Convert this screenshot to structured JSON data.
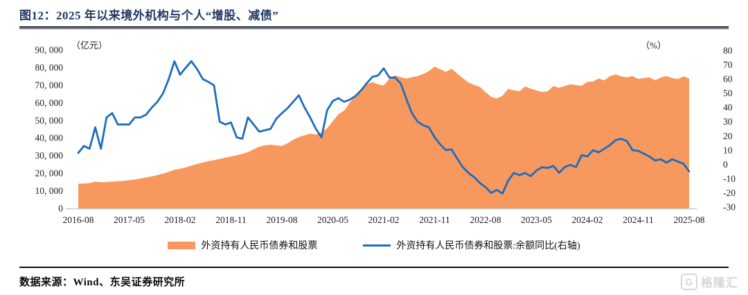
{
  "header": {
    "title": "图12：2025 年以来境外机构与个人“增股、减债”"
  },
  "footer": {
    "source": "数据来源：Wind、东吴证券研究所"
  },
  "watermark": {
    "logo_letter": "G",
    "text": "格隆汇"
  },
  "colors": {
    "area": "#F7995E",
    "line": "#1B6DBE",
    "title_navy": "#1F3864",
    "axis_text": "#1c1c24",
    "axis_line": "#c9c9c9"
  },
  "chart_data": {
    "type": "area",
    "subtype": "area + line, dual axis, monthly series 2016-08 to 2025-08",
    "x_tick_labels": [
      "2016-08",
      "2017-05",
      "2018-02",
      "2018-11",
      "2019-08",
      "2020-05",
      "2021-02",
      "2021-11",
      "2022-08",
      "2023-05",
      "2024-02",
      "2024-11",
      "2025-08"
    ],
    "left_axis": {
      "unit": "（亿元）",
      "min": 0,
      "max": 90000,
      "tick_step": 10000,
      "tick_labels_top_down": [
        "90, 000",
        "80, 000",
        "70, 000",
        "60, 000",
        "50, 000",
        "40, 000",
        "30, 000",
        "20, 000",
        "10, 000",
        "0"
      ]
    },
    "right_axis": {
      "unit": "（%）",
      "min": -30,
      "max": 80,
      "tick_step": 10,
      "tick_labels_top_down": [
        "80",
        "70",
        "60",
        "50",
        "40",
        "30",
        "20",
        "10",
        "0",
        "-10",
        "-20",
        "-30"
      ]
    },
    "grid": "off",
    "legend_position": "bottom-center",
    "x": [
      "2016-08",
      "2016-09",
      "2016-10",
      "2016-11",
      "2016-12",
      "2017-01",
      "2017-02",
      "2017-03",
      "2017-04",
      "2017-05",
      "2017-06",
      "2017-07",
      "2017-08",
      "2017-09",
      "2017-10",
      "2017-11",
      "2017-12",
      "2018-01",
      "2018-02",
      "2018-03",
      "2018-04",
      "2018-05",
      "2018-06",
      "2018-07",
      "2018-08",
      "2018-09",
      "2018-10",
      "2018-11",
      "2018-12",
      "2019-01",
      "2019-02",
      "2019-03",
      "2019-04",
      "2019-05",
      "2019-06",
      "2019-07",
      "2019-08",
      "2019-09",
      "2019-10",
      "2019-11",
      "2019-12",
      "2020-01",
      "2020-02",
      "2020-03",
      "2020-04",
      "2020-05",
      "2020-06",
      "2020-07",
      "2020-08",
      "2020-09",
      "2020-10",
      "2020-11",
      "2020-12",
      "2021-01",
      "2021-02",
      "2021-03",
      "2021-04",
      "2021-05",
      "2021-06",
      "2021-07",
      "2021-08",
      "2021-09",
      "2021-10",
      "2021-11",
      "2021-12",
      "2022-01",
      "2022-02",
      "2022-03",
      "2022-04",
      "2022-05",
      "2022-06",
      "2022-07",
      "2022-08",
      "2022-09",
      "2022-10",
      "2022-11",
      "2022-12",
      "2023-01",
      "2023-02",
      "2023-03",
      "2023-04",
      "2023-05",
      "2023-06",
      "2023-07",
      "2023-08",
      "2023-09",
      "2023-10",
      "2023-11",
      "2023-12",
      "2024-01",
      "2024-02",
      "2024-03",
      "2024-04",
      "2024-05",
      "2024-06",
      "2024-07",
      "2024-08",
      "2024-09",
      "2024-10",
      "2024-11",
      "2024-12",
      "2025-01",
      "2025-02",
      "2025-03",
      "2025-04",
      "2025-05",
      "2025-06",
      "2025-07",
      "2025-08"
    ],
    "series": [
      {
        "name": "外资持有人民币债券和股票",
        "type": "area",
        "axis": "left",
        "color": "#F7995E",
        "values": [
          14000,
          14200,
          14400,
          15200,
          14900,
          15000,
          15200,
          15400,
          15700,
          16000,
          16400,
          17000,
          17600,
          18200,
          19000,
          19800,
          20800,
          22000,
          22500,
          23300,
          24300,
          25200,
          26100,
          26800,
          27400,
          28100,
          28800,
          29500,
          30100,
          31000,
          32000,
          33500,
          35000,
          35800,
          36200,
          35800,
          35500,
          37000,
          39000,
          40500,
          41500,
          42500,
          42000,
          43000,
          45500,
          49500,
          53500,
          55500,
          60000,
          64000,
          67000,
          70400,
          71800,
          70400,
          69800,
          73700,
          75500,
          74500,
          73700,
          74500,
          75200,
          76300,
          78000,
          80500,
          79000,
          77500,
          79300,
          76500,
          74000,
          71500,
          70000,
          69000,
          66000,
          63300,
          62400,
          64000,
          67900,
          67000,
          66500,
          69200,
          68000,
          67000,
          66100,
          66500,
          69500,
          68500,
          69500,
          70500,
          70000,
          69600,
          71800,
          72000,
          73800,
          72700,
          75100,
          76000,
          75000,
          74400,
          75100,
          73500,
          74000,
          74400,
          72700,
          74400,
          75100,
          74000,
          73500,
          75000,
          73800
        ]
      },
      {
        "name": "外资持有人民币债券和股票:余额同比(右轴)",
        "type": "line",
        "axis": "right",
        "color": "#1B6DBE",
        "values": [
          8,
          13,
          11,
          26,
          11,
          33,
          36,
          28,
          28,
          28,
          33,
          33,
          35,
          40,
          44,
          50,
          60,
          72.5,
          63,
          68,
          72.5,
          67,
          60,
          58,
          55.5,
          30,
          28,
          29.5,
          19,
          18,
          33,
          28,
          23,
          24,
          25,
          32,
          36,
          39.5,
          44,
          48.5,
          40,
          33,
          25,
          19,
          38,
          44.5,
          46.5,
          44,
          45.5,
          48,
          52,
          57,
          61.5,
          62.5,
          67.5,
          61,
          61,
          57,
          46,
          36,
          30,
          27.5,
          26,
          19,
          14,
          10,
          10.5,
          4,
          -2,
          -6,
          -9,
          -13,
          -16,
          -20,
          -18,
          -20.5,
          -11.5,
          -6,
          -7.5,
          -6,
          -8.3,
          -4.3,
          -2,
          -2.5,
          -1.1,
          -5.9,
          -1.9,
          -0.3,
          -1.9,
          6.5,
          5.6,
          10,
          8.5,
          11,
          13.6,
          17,
          18,
          16.3,
          10,
          9.5,
          7.5,
          5.5,
          2.7,
          3.6,
          1.2,
          3.6,
          2,
          0.5,
          -5
        ]
      }
    ],
    "legend": [
      {
        "label": "外资持有人民币债券和股票",
        "swatch": "area",
        "color": "#F7995E"
      },
      {
        "label": "外资持有人民币债券和股票:余额同比(右轴)",
        "swatch": "line",
        "color": "#1B6DBE"
      }
    ]
  }
}
